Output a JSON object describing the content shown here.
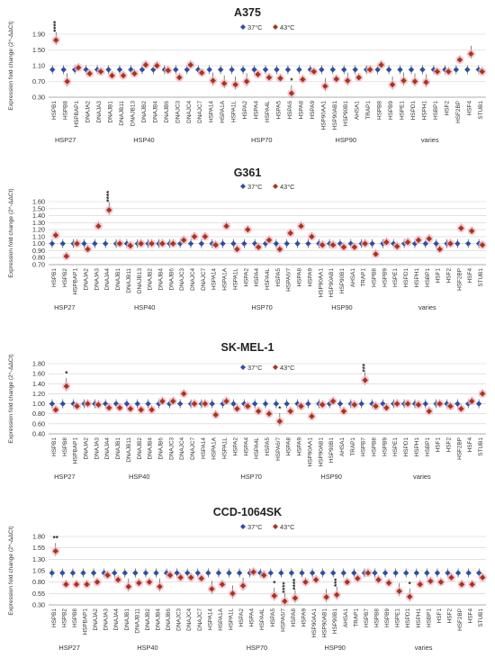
{
  "chart_data": [
    {
      "type": "scatter",
      "title": "A375",
      "ylabel": "Expression fold change (2^-ΔΔCt)",
      "yticks": [
        "1.90",
        "1.50",
        "1.10",
        "0.70",
        "0.30"
      ],
      "ylim": [
        0.3,
        1.9
      ],
      "legend": [
        "37°C",
        "43°C"
      ],
      "legend_position": "top-right",
      "categories": [
        "HSPB1",
        "HSPB8",
        "HSPBAP1",
        "DNAJA2",
        "DNAJA3",
        "DNAJB1",
        "DNAJB11",
        "DNAJB13",
        "DNAJB2",
        "DNAJB4",
        "DNAJB6",
        "DNAJC3",
        "DNAJC4",
        "DNAJC7",
        "HSPA14",
        "HSPA1A",
        "HSPA1L",
        "HSPA2",
        "HSPA4",
        "HSPA4L",
        "HSPA5",
        "HSPA6",
        "HSPA8",
        "HSPA9",
        "HSP90AA1",
        "HSP90AB1",
        "HSP90B1",
        "AHSA1",
        "TRAP1",
        "HSPB8",
        "HSPB9",
        "HSPE1",
        "HSPD1",
        "HSPH1",
        "HSBP1",
        "HSF2",
        "HSF2BP",
        "HSF4",
        "STUB1"
      ],
      "groups": [
        {
          "name": "HSP27",
          "from": 0,
          "to": 2
        },
        {
          "name": "HSP40",
          "from": 3,
          "to": 13
        },
        {
          "name": "HSP70",
          "from": 14,
          "to": 23
        },
        {
          "name": "HSP90",
          "from": 24,
          "to": 28
        },
        {
          "name": "varies",
          "from": 29,
          "to": 38
        }
      ],
      "series": [
        {
          "name": "37°C",
          "values": [
            1.0,
            1.0,
            1.0,
            1.0,
            1.0,
            1.0,
            1.0,
            1.0,
            1.0,
            1.0,
            1.0,
            1.0,
            1.0,
            1.0,
            1.0,
            1.0,
            1.0,
            1.0,
            1.0,
            1.0,
            1.0,
            1.0,
            1.0,
            1.0,
            1.0,
            1.0,
            1.0,
            1.0,
            1.0,
            1.0,
            1.0,
            1.0,
            1.0,
            1.0,
            1.0,
            1.0,
            1.0,
            1.0,
            1.0
          ]
        },
        {
          "name": "43°C",
          "values": [
            1.75,
            0.7,
            1.05,
            0.9,
            0.95,
            0.85,
            0.85,
            0.9,
            1.12,
            1.1,
            0.98,
            0.8,
            1.12,
            0.92,
            0.72,
            0.65,
            0.62,
            0.7,
            0.88,
            0.8,
            0.78,
            0.4,
            0.75,
            0.95,
            0.58,
            0.76,
            0.72,
            0.8,
            1.0,
            1.12,
            0.62,
            0.72,
            0.7,
            0.68,
            0.95,
            0.95,
            1.25,
            1.4,
            0.95
          ]
        }
      ],
      "annotations": [
        {
          "category": "HSPB1",
          "text": "****"
        },
        {
          "category": "HSPA6",
          "text": "*"
        }
      ]
    },
    {
      "type": "scatter",
      "title": "G361",
      "ylabel": "Expression fold change (2^-ΔΔCt)",
      "yticks": [
        "1.60",
        "1.50",
        "1.40",
        "1.30",
        "1.20",
        "1.10",
        "1.00",
        "0.90",
        "0.80",
        "0.70"
      ],
      "ylim": [
        0.7,
        1.6
      ],
      "legend": [
        "37°C",
        "43°C"
      ],
      "legend_position": "top-right",
      "categories": [
        "HSPB1",
        "HSPB2",
        "HSPBAP1",
        "DNAJA2",
        "DNAJA3",
        "DNAJA4",
        "DNAJB1",
        "DNAJB11",
        "DNAJB13",
        "DNAJB2",
        "DNAJB4",
        "DNAJB6",
        "DNAJC3",
        "DNAJC4",
        "DNAJC7",
        "HSPA14",
        "HSPA1A",
        "HSPA1L",
        "HSPA2",
        "HSPA4",
        "HSPA4L",
        "HSPA5",
        "HSPA6/7",
        "HSPA8",
        "HSPA9",
        "HSP90AA1",
        "HSP90AB1",
        "HSP90B1",
        "AHSA1",
        "TRAP1",
        "HSPB8",
        "HSPB9",
        "HSPE1",
        "HSPD1",
        "HSPH1",
        "HSBP1",
        "HSF1",
        "HSF2",
        "HSF2BP",
        "HSF4",
        "STUB1"
      ],
      "groups": [
        {
          "name": "HSP27",
          "from": 0,
          "to": 2
        },
        {
          "name": "HSP40",
          "from": 3,
          "to": 14
        },
        {
          "name": "HSP70",
          "from": 15,
          "to": 24
        },
        {
          "name": "HSP90",
          "from": 25,
          "to": 29
        },
        {
          "name": "varies",
          "from": 30,
          "to": 40
        }
      ],
      "series": [
        {
          "name": "37°C",
          "values": [
            1.0,
            1.0,
            1.0,
            1.0,
            1.0,
            1.0,
            1.0,
            1.0,
            1.0,
            1.0,
            1.0,
            1.0,
            1.0,
            1.0,
            1.0,
            1.0,
            1.0,
            1.0,
            1.0,
            1.0,
            1.0,
            1.0,
            1.0,
            1.0,
            1.0,
            1.0,
            1.0,
            1.0,
            1.0,
            1.0,
            1.0,
            1.0,
            1.0,
            1.0,
            1.0,
            1.0,
            1.0,
            1.0,
            1.0,
            1.0,
            1.0
          ]
        },
        {
          "name": "43°C",
          "values": [
            1.12,
            0.82,
            1.0,
            0.92,
            1.25,
            1.48,
            1.0,
            0.97,
            1.0,
            1.0,
            1.0,
            1.0,
            1.05,
            1.1,
            1.1,
            0.98,
            1.25,
            0.92,
            1.2,
            0.95,
            1.05,
            0.92,
            1.15,
            1.25,
            1.1,
            0.98,
            0.98,
            0.95,
            0.95,
            1.0,
            0.85,
            1.02,
            0.96,
            1.02,
            1.05,
            1.07,
            0.92,
            1.0,
            1.22,
            1.18,
            0.98
          ]
        }
      ],
      "annotations": [
        {
          "category": "DNAJA4",
          "text": "****"
        }
      ]
    },
    {
      "type": "scatter",
      "title": "SK-MEL-1",
      "ylabel": "Expression fold change (2^-ΔΔCt)",
      "yticks": [
        "1.80",
        "1.60",
        "1.40",
        "1.20",
        "1.00",
        "0.80",
        "0.60",
        "0.40"
      ],
      "ylim": [
        0.4,
        1.8
      ],
      "legend": [
        "37°C",
        "43°C"
      ],
      "legend_position": "top-center",
      "categories": [
        "HSPB1",
        "HSPB8",
        "HSPBAP1",
        "DNAJA2",
        "DNAJA3",
        "DNAJA4",
        "DNAJB1",
        "DNAJB11",
        "DNAJB2",
        "DNAJB4",
        "DNAJB6",
        "DNAJC3",
        "DNAJC4",
        "DNAJC7",
        "HSPA14",
        "HSPA1A",
        "HSPA1L",
        "HSPA2",
        "HSPA4",
        "HSPA4L",
        "HSPA5",
        "HSPA6/7",
        "HSPA8",
        "HSPA9",
        "HSP90AA1",
        "HSP90AB1",
        "HSP90B1",
        "AHSA1",
        "TRAP1",
        "HSPB7",
        "HSPB8",
        "HSPB9",
        "HSPE1",
        "HSPD1",
        "HSPH1",
        "HSBP1",
        "HSF1",
        "HSF2",
        "HSF2BP",
        "HSF4",
        "STUB1"
      ],
      "groups": [
        {
          "name": "HSP27",
          "from": 0,
          "to": 2
        },
        {
          "name": "HSP40",
          "from": 3,
          "to": 13
        },
        {
          "name": "HSP70",
          "from": 14,
          "to": 23
        },
        {
          "name": "HSP90",
          "from": 24,
          "to": 28
        },
        {
          "name": "varies",
          "from": 29,
          "to": 40
        }
      ],
      "series": [
        {
          "name": "37°C",
          "values": [
            1.0,
            1.0,
            1.0,
            1.0,
            1.0,
            1.0,
            1.0,
            1.0,
            1.0,
            1.0,
            1.0,
            1.0,
            1.0,
            1.0,
            1.0,
            1.0,
            1.0,
            1.0,
            1.0,
            1.0,
            1.0,
            1.0,
            1.0,
            1.0,
            1.0,
            1.0,
            1.0,
            1.0,
            1.0,
            1.0,
            1.0,
            1.0,
            1.0,
            1.0,
            1.0,
            1.0,
            1.0,
            1.0,
            1.0,
            1.0,
            1.0
          ]
        },
        {
          "name": "43°C",
          "values": [
            0.88,
            1.35,
            0.95,
            1.0,
            0.98,
            0.92,
            0.92,
            0.9,
            0.88,
            0.88,
            1.05,
            1.05,
            1.2,
            1.0,
            1.0,
            0.78,
            1.05,
            0.9,
            0.95,
            0.85,
            0.8,
            0.65,
            0.85,
            0.95,
            0.75,
            0.98,
            1.05,
            0.85,
            0.98,
            1.47,
            0.95,
            0.92,
            1.0,
            1.0,
            0.98,
            0.85,
            1.0,
            0.95,
            0.9,
            1.05,
            1.2
          ]
        }
      ],
      "annotations": [
        {
          "category": "HSPB8",
          "text": "*"
        },
        {
          "category": "HSPA6/7",
          "text": "*"
        },
        {
          "category": "HSPB7",
          "text": "***"
        }
      ]
    },
    {
      "type": "scatter",
      "title": "CCD-1064SK",
      "ylabel": "Expression fold change (2^-ΔΔCt)",
      "yticks": [
        "1.80",
        "1.55",
        "1.30",
        "1.05",
        "0.80",
        "0.55",
        "0.30"
      ],
      "ylim": [
        0.3,
        1.8
      ],
      "legend": [
        "37°C",
        "43°C"
      ],
      "legend_position": "top-center",
      "categories": [
        "HSPB1",
        "HSPB2",
        "HSPB8",
        "HSPBAP1",
        "DNAJA2",
        "DNAJA3",
        "DNAJA4",
        "DNAJB1",
        "DNAJB11",
        "DNAJB2",
        "DNAJB4",
        "DNAJB6",
        "DNAJC3",
        "DNAJC4",
        "DNAJC7",
        "HSPA14",
        "HSPA1A",
        "HSPA1L",
        "HSPA2",
        "HSPA4",
        "HSPA4L",
        "HSPA5",
        "HSPA6/7",
        "HSPA8",
        "HSPA9",
        "HSP90AA1",
        "HSP90AB1",
        "HSP90B1",
        "AHSA1",
        "TRAP1",
        "HSPB7",
        "HSPB8",
        "HSPB9",
        "HSPE1",
        "HSPD1",
        "HSPH1",
        "HSBP1",
        "HSF1",
        "HSF2",
        "HSF2BP",
        "HSF4",
        "STUB1"
      ],
      "groups": [
        {
          "name": "HSP27",
          "from": 0,
          "to": 3
        },
        {
          "name": "HSP40",
          "from": 4,
          "to": 14
        },
        {
          "name": "HSP70",
          "from": 15,
          "to": 24
        },
        {
          "name": "HSP90",
          "from": 25,
          "to": 29
        },
        {
          "name": "varies",
          "from": 30,
          "to": 41
        }
      ],
      "series": [
        {
          "name": "37°C",
          "values": [
            1.0,
            1.0,
            1.0,
            1.0,
            1.0,
            1.0,
            1.0,
            1.0,
            1.0,
            1.0,
            1.0,
            1.0,
            1.0,
            1.0,
            1.0,
            1.0,
            1.0,
            1.0,
            1.0,
            1.0,
            1.0,
            1.0,
            1.0,
            1.0,
            1.0,
            1.0,
            1.0,
            1.0,
            1.0,
            1.0,
            1.0,
            1.0,
            1.0,
            1.0,
            1.0,
            1.0,
            1.0,
            1.0,
            1.0,
            1.0,
            1.0,
            1.0
          ]
        },
        {
          "name": "43°C",
          "values": [
            1.48,
            0.75,
            0.75,
            0.75,
            0.8,
            0.95,
            0.85,
            0.7,
            0.78,
            0.8,
            0.7,
            0.95,
            0.9,
            0.9,
            0.88,
            0.65,
            0.75,
            0.55,
            0.72,
            1.02,
            0.95,
            0.5,
            0.38,
            0.45,
            0.8,
            0.85,
            0.47,
            0.52,
            0.8,
            0.88,
            1.0,
            0.85,
            0.78,
            0.6,
            0.48,
            0.75,
            0.82,
            0.8,
            0.9,
            0.75,
            0.75,
            0.9
          ]
        }
      ],
      "annotations": [
        {
          "category": "HSPB1",
          "text": "**"
        },
        {
          "category": "HSPA5",
          "text": "*"
        },
        {
          "category": "HSPA6/7",
          "text": "****"
        },
        {
          "category": "HSPA8",
          "text": "****"
        },
        {
          "category": "HSP90B1",
          "text": "***"
        },
        {
          "category": "HSPD1",
          "text": "*"
        }
      ]
    }
  ],
  "colors": {
    "series_37": "#2e4fa3",
    "series_43": "#a8341f",
    "error_bar": "#333333",
    "grid": "#d0d0d0"
  }
}
